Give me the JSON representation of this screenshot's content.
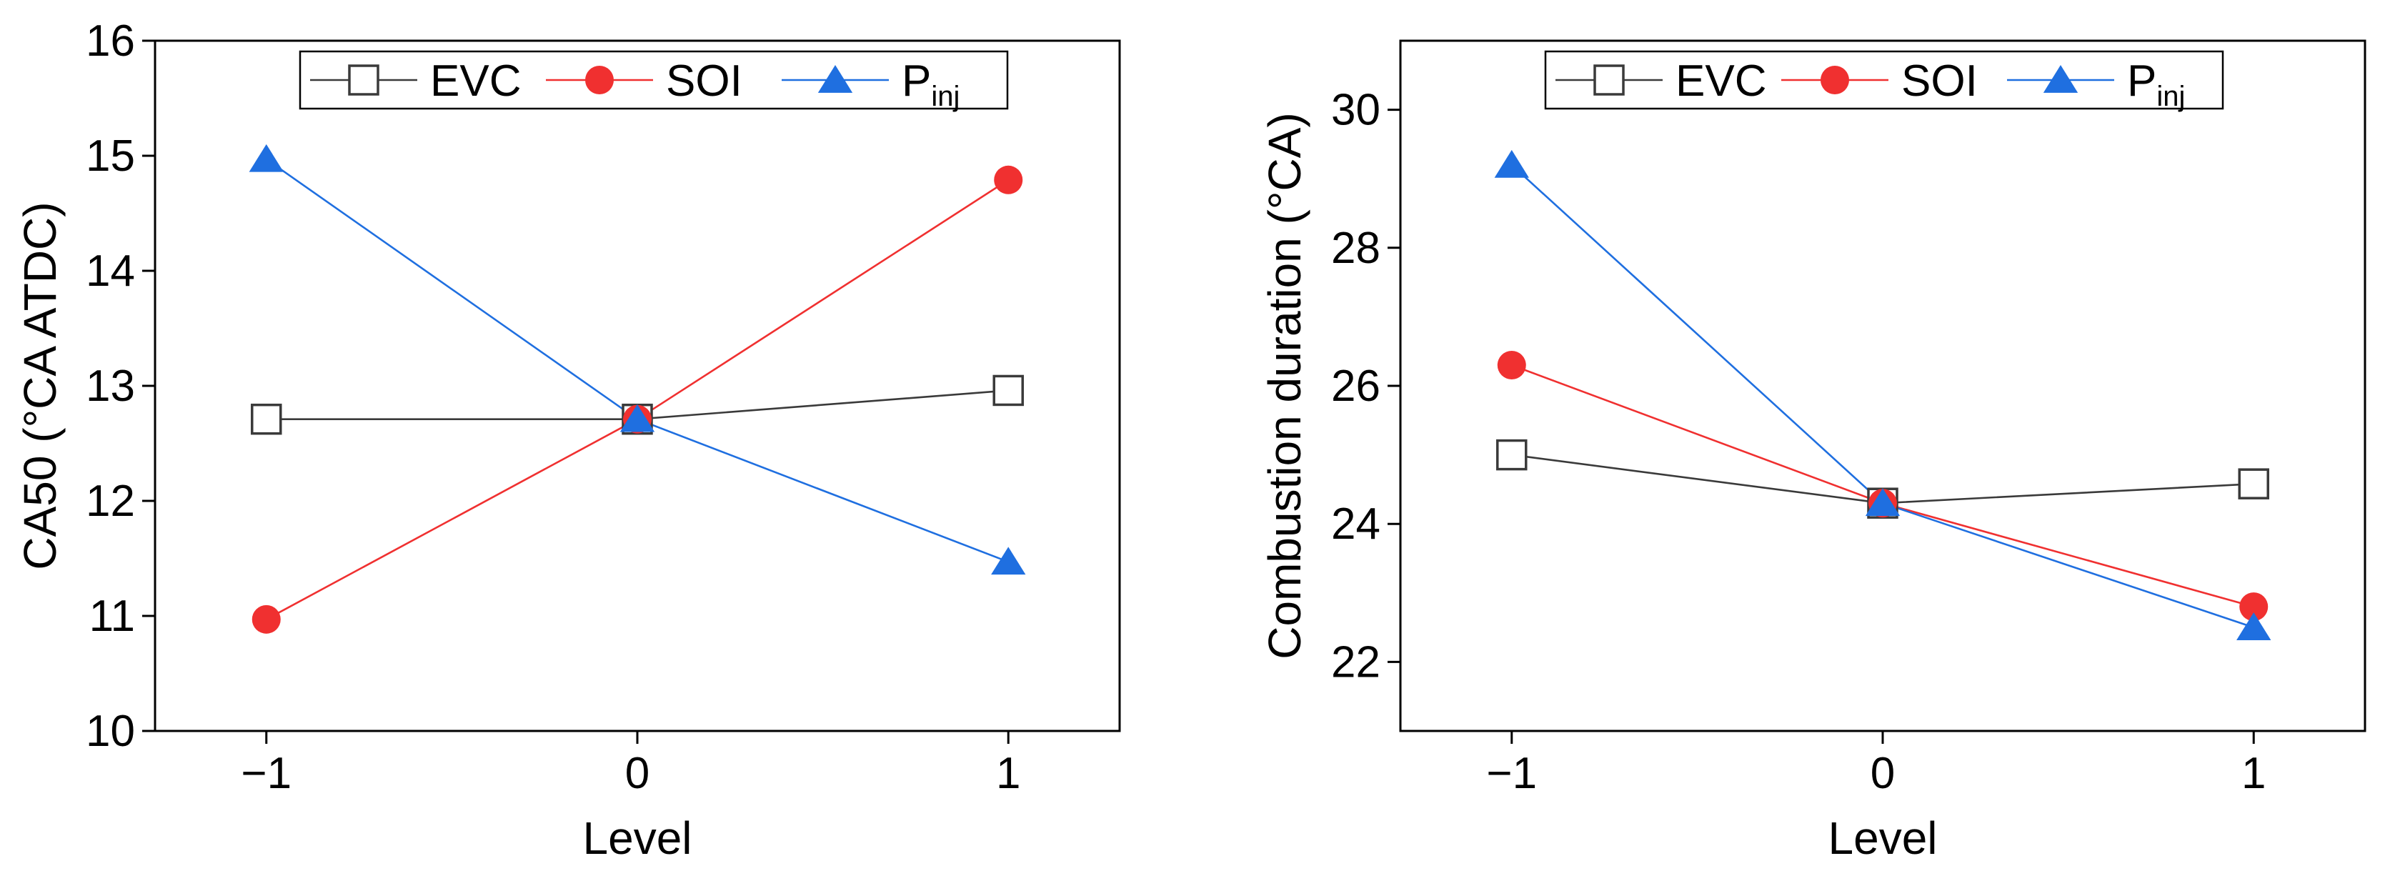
{
  "chart_data": [
    {
      "type": "line",
      "x": [
        -1,
        0,
        1
      ],
      "x_tick_labels": [
        "−1",
        "0",
        "1"
      ],
      "xlim": [
        -1.3,
        1.3
      ],
      "xlabel": "Level",
      "ylabel": "CA50 (°CA ATDC)",
      "ylim": [
        10,
        16
      ],
      "y_ticks": [
        10,
        11,
        12,
        13,
        14,
        15,
        16
      ],
      "legend_position": "top-center",
      "series": [
        {
          "name": "EVC",
          "values": [
            12.71,
            12.71,
            12.96
          ],
          "color": "#3a3a3a",
          "marker": "open-square"
        },
        {
          "name": "SOI",
          "values": [
            10.97,
            12.71,
            14.79
          ],
          "color": "#f03030",
          "marker": "filled-circle"
        },
        {
          "name": "P",
          "subscript": "inj",
          "values": [
            14.97,
            12.71,
            11.47
          ],
          "color": "#1f6fe0",
          "marker": "filled-triangle"
        }
      ]
    },
    {
      "type": "line",
      "x": [
        -1,
        0,
        1
      ],
      "x_tick_labels": [
        "−1",
        "0",
        "1"
      ],
      "xlim": [
        -1.3,
        1.3
      ],
      "xlabel": "Level",
      "ylabel": "Combustion duration (°CA)",
      "ylim": [
        21,
        31
      ],
      "y_ticks": [
        22,
        24,
        26,
        28,
        30
      ],
      "legend_position": "top-center",
      "series": [
        {
          "name": "EVC",
          "values": [
            25.0,
            24.3,
            24.58
          ],
          "color": "#3a3a3a",
          "marker": "open-square"
        },
        {
          "name": "SOI",
          "values": [
            26.3,
            24.3,
            22.8
          ],
          "color": "#f03030",
          "marker": "filled-circle"
        },
        {
          "name": "P",
          "subscript": "inj",
          "values": [
            29.2,
            24.3,
            22.5
          ],
          "color": "#1f6fe0",
          "marker": "filled-triangle"
        }
      ]
    }
  ]
}
